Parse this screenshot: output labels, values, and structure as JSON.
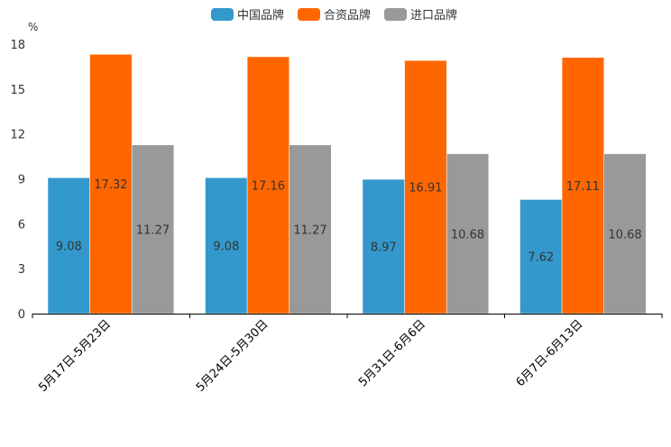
{
  "chart_data": {
    "type": "bar",
    "title": "",
    "xlabel": "",
    "ylabel": "%",
    "ylim": [
      0,
      18
    ],
    "yticks": [
      0,
      3,
      6,
      9,
      12,
      15,
      18
    ],
    "grid": false,
    "legend_position": "top-center",
    "categories": [
      "5月17日-5月23日",
      "5月24日-5月30日",
      "5月31日-6月6日",
      "6月7日-6月13日"
    ],
    "series": [
      {
        "name": "中国品牌",
        "color": "#3399cc",
        "values": [
          9.08,
          9.08,
          8.97,
          7.62
        ]
      },
      {
        "name": "合资品牌",
        "color": "#ff6600",
        "values": [
          17.32,
          17.16,
          16.91,
          17.11
        ]
      },
      {
        "name": "进口品牌",
        "color": "#999999",
        "values": [
          11.27,
          11.27,
          10.68,
          10.68
        ]
      }
    ]
  }
}
